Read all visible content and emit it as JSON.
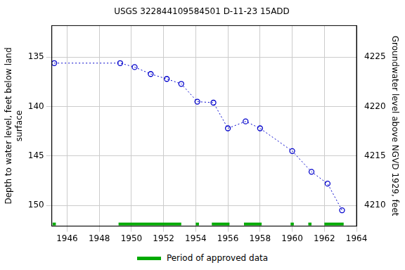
{
  "chart_data": {
    "type": "scatter",
    "title": "USGS 322844109584501 D-11-23 15ADD",
    "ylabel": [
      "Depth to water level, feet below land",
      "surface"
    ],
    "y2label": "Groundwater level above NGVD 1929, feet",
    "x": [
      1945.2,
      1949.3,
      1950.2,
      1951.2,
      1952.2,
      1953.1,
      1954.1,
      1955.1,
      1956.0,
      1957.1,
      1958.0,
      1960.0,
      1961.2,
      1962.2,
      1963.1
    ],
    "values": [
      135.6,
      135.6,
      136.0,
      136.7,
      137.2,
      137.7,
      139.5,
      139.6,
      142.2,
      141.5,
      142.2,
      144.5,
      146.6,
      147.8,
      150.5
    ],
    "color": "#0000cc",
    "marker": "circle_open",
    "line_style": "dotted",
    "xlim": [
      1945.05,
      1964
    ],
    "xticks": [
      1946,
      1948,
      1950,
      1952,
      1954,
      1956,
      1958,
      1960,
      1962,
      1964
    ],
    "ylim": [
      131.8,
      152.1
    ],
    "yticks": [
      135,
      140,
      145,
      150
    ],
    "y2lim": [
      4207.9,
      4228.2
    ],
    "y2ticks": [
      4210,
      4215,
      4220,
      4225
    ],
    "grid": true,
    "legend": "bottom",
    "approved_periods": {
      "name": "Period of approved data",
      "color": "#00aa00",
      "ranges": [
        [
          1945.1,
          1945.3
        ],
        [
          1949.2,
          1953.1
        ],
        [
          1954.0,
          1954.2
        ],
        [
          1955.0,
          1956.1
        ],
        [
          1957.0,
          1958.1
        ],
        [
          1959.9,
          1960.1
        ],
        [
          1961.0,
          1961.2
        ],
        [
          1962.0,
          1963.2
        ]
      ]
    }
  }
}
